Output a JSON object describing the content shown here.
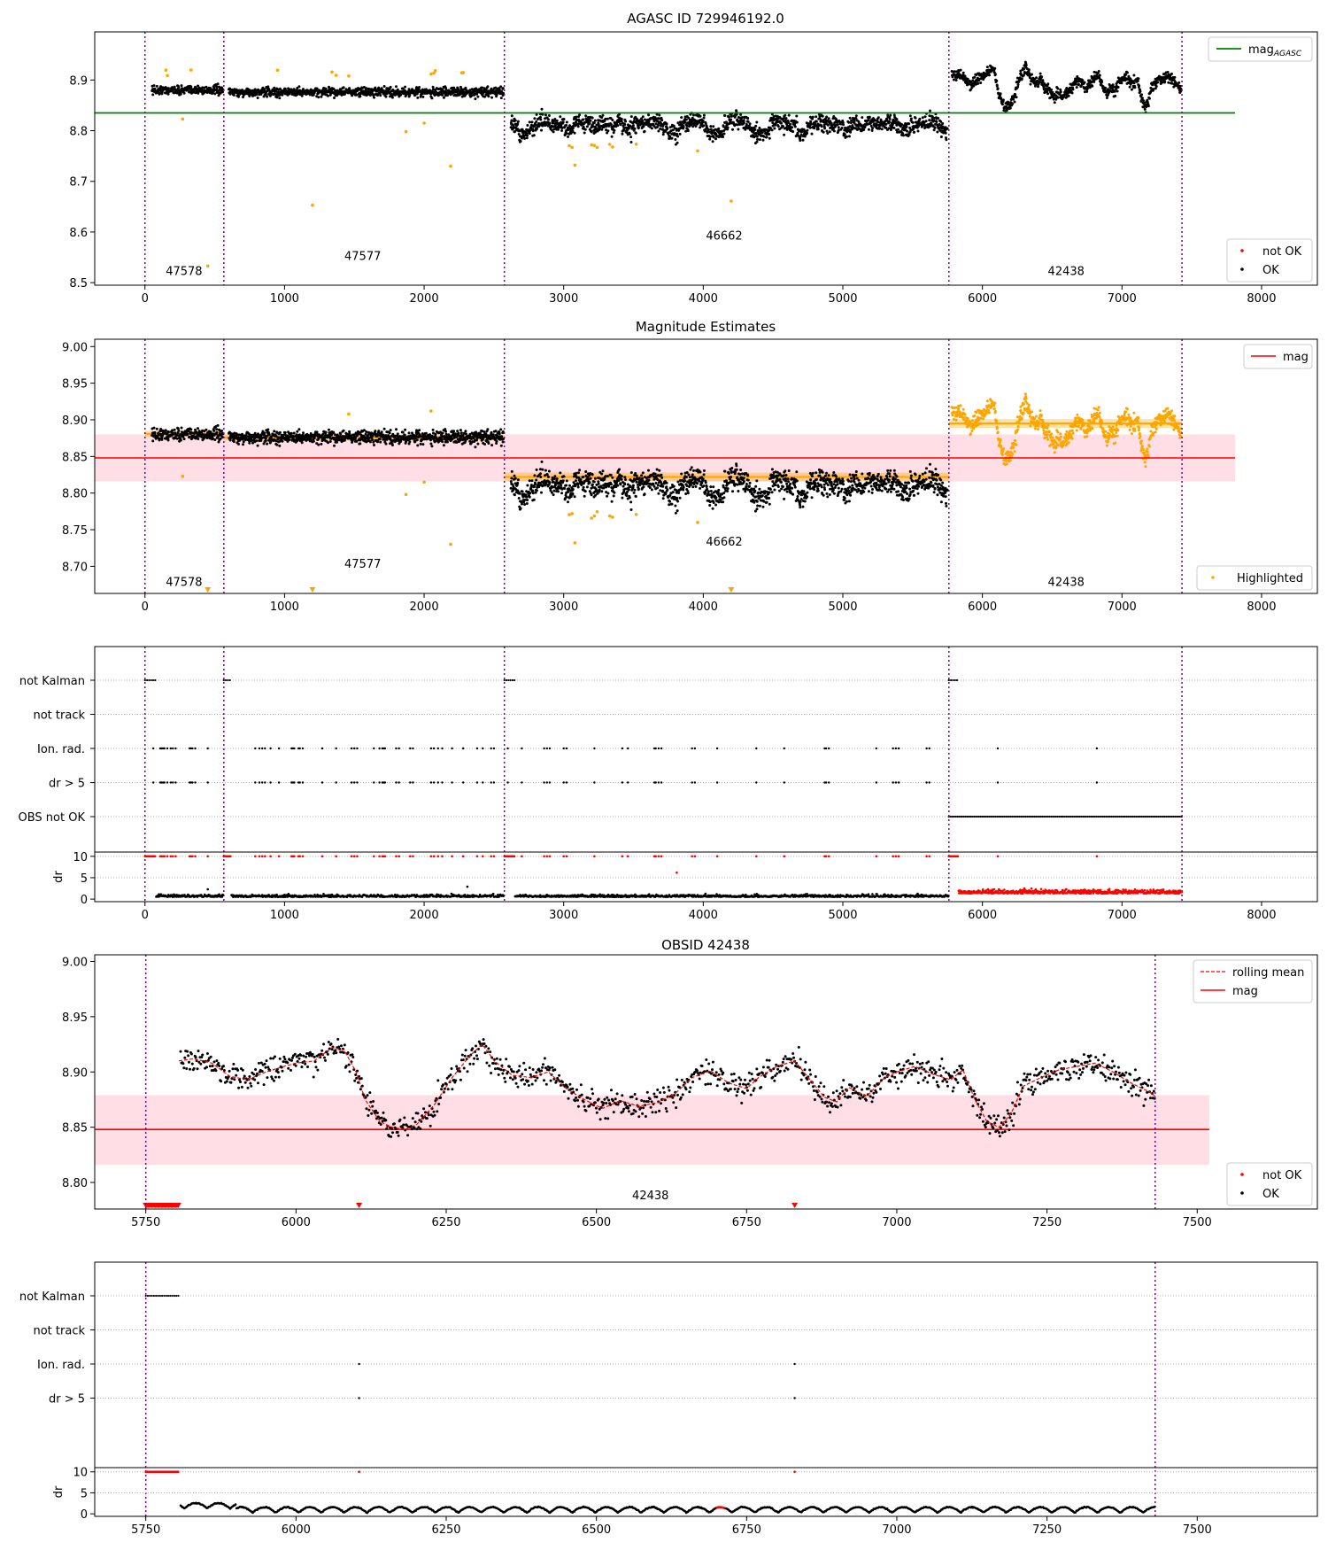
{
  "figure": {
    "top_title": "AGASC ID 729946192.0",
    "mag_title": "Magnitude Estimates",
    "obs_title": "OBSID 42438"
  },
  "colors": {
    "ok": "#000000",
    "not_ok": "#ff0000",
    "highlight": "#ffa500",
    "agasc_line": "#008000",
    "mag_line": "#ff0000",
    "band": "#ffc0cb",
    "obs_boundary": "#800080"
  },
  "chart_data": [
    {
      "type": "scatter",
      "title": "AGASC ID 729946192.0",
      "xlabel": "",
      "ylabel": "",
      "xlim": [
        -360,
        8400
      ],
      "ylim": [
        8.495,
        8.995
      ],
      "xticks": [
        0,
        1000,
        2000,
        3000,
        4000,
        5000,
        6000,
        7000,
        8000
      ],
      "yticks": [
        8.5,
        8.6,
        8.7,
        8.8,
        8.9
      ],
      "obs_boundaries": [
        0,
        565,
        2575,
        5760,
        7430
      ],
      "obsids": [
        {
          "label": "47578",
          "x": 280,
          "y": 8.515
        },
        {
          "label": "47577",
          "x": 1560,
          "y": 8.545
        },
        {
          "label": "46662",
          "x": 4150,
          "y": 8.585
        },
        {
          "label": "42438",
          "x": 6600,
          "y": 8.515
        }
      ],
      "hlines": [
        {
          "name": "mag$_{AGASC}$",
          "y": 8.835,
          "x": [
            -360,
            7810
          ]
        }
      ],
      "segments": [
        {
          "x0": 50,
          "x1": 560,
          "level": 8.88,
          "spread": 0.012
        },
        {
          "x0": 600,
          "x1": 2570,
          "level": 8.876,
          "spread": 0.012
        },
        {
          "x0": 2620,
          "x1": 5750,
          "level": 8.82,
          "spread": 0.022
        },
        {
          "x0": 5780,
          "x1": 7425,
          "level": 8.895,
          "spread": 0.02
        }
      ],
      "outliers": [
        {
          "x": 270,
          "y": 8.823
        },
        {
          "x": 450,
          "y": 8.533
        },
        {
          "x": 1200,
          "y": 8.653
        },
        {
          "x": 1870,
          "y": 8.798
        },
        {
          "x": 2000,
          "y": 8.815
        },
        {
          "x": 2190,
          "y": 8.73
        },
        {
          "x": 3080,
          "y": 8.732
        },
        {
          "x": 3960,
          "y": 8.76
        },
        {
          "x": 4200,
          "y": 8.661
        },
        {
          "x": 1460,
          "y": 8.908
        },
        {
          "x": 2050,
          "y": 8.912
        }
      ],
      "legend": {
        "upper": [
          "mag$_{AGASC}$"
        ],
        "lower": [
          "not OK",
          "OK"
        ],
        "location": "upper right / lower right"
      }
    },
    {
      "type": "scatter",
      "title": "Magnitude Estimates",
      "xlim": [
        -360,
        8400
      ],
      "ylim": [
        8.663,
        9.01
      ],
      "xticks": [
        0,
        1000,
        2000,
        3000,
        4000,
        5000,
        6000,
        7000,
        8000
      ],
      "yticks": [
        8.7,
        8.75,
        8.8,
        8.85,
        8.9,
        8.95,
        9.0
      ],
      "obs_boundaries": [
        0,
        565,
        2575,
        5760,
        7430
      ],
      "obsids": [
        {
          "label": "47578",
          "x": 280,
          "y": 8.673
        },
        {
          "label": "47577",
          "x": 1560,
          "y": 8.698
        },
        {
          "label": "46662",
          "x": 4150,
          "y": 8.728
        },
        {
          "label": "42438",
          "x": 6600,
          "y": 8.673
        }
      ],
      "hlines": [
        {
          "name": "mag",
          "y": 8.848,
          "x": [
            -360,
            7810
          ]
        }
      ],
      "band": {
        "y0": 8.816,
        "y1": 8.88,
        "x": [
          -360,
          7810
        ]
      },
      "obs_means": [
        {
          "x0": 0,
          "x1": 565,
          "y": 8.881,
          "err": 0.004
        },
        {
          "x0": 565,
          "x1": 2575,
          "y": 8.876,
          "err": 0.004
        },
        {
          "x0": 2575,
          "x1": 5760,
          "y": 8.822,
          "err": 0.006
        },
        {
          "x0": 5760,
          "x1": 7430,
          "y": 8.895,
          "err": 0.006
        }
      ],
      "limit_markers": [
        {
          "x": 450
        },
        {
          "x": 1200
        },
        {
          "x": 4200
        }
      ],
      "legend": {
        "upper": [
          "mag"
        ],
        "lower": [
          "Highlighted"
        ]
      }
    },
    {
      "type": "scatter",
      "title": "",
      "xlim": [
        -360,
        8400
      ],
      "xticks": [
        0,
        1000,
        2000,
        3000,
        4000,
        5000,
        6000,
        7000,
        8000
      ],
      "flag_rows": [
        "not Kalman",
        "not track",
        "Ion. rad.",
        "dr > 5",
        "OBS not OK"
      ],
      "flags": {
        "not_kalman": [
          [
            0,
            75
          ],
          [
            565,
            620
          ],
          [
            2575,
            2650
          ],
          [
            5760,
            5830
          ]
        ],
        "ion_rad": [
          60,
          110,
          120,
          130,
          140,
          160,
          185,
          200,
          220,
          320,
          330,
          340,
          360,
          450,
          790,
          820,
          840,
          860,
          900,
          960,
          1050,
          1060,
          1070,
          1100,
          1110,
          1130,
          1270,
          1370,
          1480,
          1500,
          1520,
          1640,
          1680,
          1700,
          1710,
          1720,
          1800,
          1820,
          1900,
          1920,
          2050,
          2070,
          2100,
          2130,
          2200,
          2280,
          2380,
          2420,
          2480,
          2500,
          2600,
          2700,
          2860,
          2880,
          2900,
          3000,
          3020,
          3220,
          3420,
          3460,
          3650,
          3660,
          3680,
          3700,
          3920,
          3940,
          4100,
          4380,
          4580,
          4900,
          4870,
          4880,
          5240,
          5360,
          5380,
          5400,
          5600,
          5620,
          6110,
          6820
        ],
        "obs_not_ok": [
          5760,
          7430
        ]
      },
      "dr_panel": {
        "ylabel": "dr",
        "ylim": [
          -0.6,
          11.0
        ],
        "yticks": [
          0,
          5,
          10
        ],
        "threshold": 5
      }
    },
    {
      "type": "line",
      "title": "OBSID 42438",
      "xlim": [
        5665,
        7700
      ],
      "ylim": [
        8.776,
        9.006
      ],
      "xticks": [
        5750,
        6000,
        6250,
        6500,
        6750,
        7000,
        7250,
        7500
      ],
      "yticks": [
        8.8,
        8.85,
        8.9,
        8.95,
        9.0
      ],
      "obs_boundaries": [
        5750,
        7430
      ],
      "obsids": [
        {
          "label": "42438",
          "x": 6590,
          "y": 8.785
        }
      ],
      "hlines": [
        {
          "name": "mag",
          "y": 8.848,
          "x": [
            5665,
            7520
          ]
        }
      ],
      "band": {
        "y0": 8.816,
        "y1": 8.879,
        "x": [
          5665,
          7520
        ]
      },
      "rolling_mean": {
        "name": "rolling mean",
        "x": [
          5805,
          5830,
          5860,
          5890,
          5920,
          5950,
          5980,
          6000,
          6030,
          6060,
          6080,
          6100,
          6115,
          6140,
          6160,
          6180,
          6200,
          6230,
          6260,
          6290,
          6310,
          6330,
          6360,
          6390,
          6420,
          6450,
          6480,
          6510,
          6540,
          6570,
          6600,
          6630,
          6660,
          6690,
          6720,
          6750,
          6770,
          6800,
          6830,
          6860,
          6880,
          6900,
          6920,
          6950,
          6980,
          7000,
          7030,
          7060,
          7090,
          7110,
          7130,
          7150,
          7170,
          7190,
          7210,
          7240,
          7270,
          7300,
          7330,
          7360,
          7390,
          7420,
          7430
        ],
        "y": [
          8.91,
          8.912,
          8.908,
          8.896,
          8.893,
          8.9,
          8.905,
          8.908,
          8.91,
          8.922,
          8.92,
          8.9,
          8.875,
          8.855,
          8.85,
          8.848,
          8.852,
          8.87,
          8.895,
          8.915,
          8.925,
          8.91,
          8.897,
          8.895,
          8.9,
          8.885,
          8.875,
          8.867,
          8.874,
          8.869,
          8.872,
          8.88,
          8.895,
          8.901,
          8.89,
          8.885,
          8.895,
          8.905,
          8.91,
          8.89,
          8.877,
          8.873,
          8.886,
          8.878,
          8.895,
          8.9,
          8.905,
          8.898,
          8.893,
          8.902,
          8.875,
          8.855,
          8.85,
          8.862,
          8.887,
          8.895,
          8.902,
          8.905,
          8.908,
          8.9,
          8.89,
          8.882,
          8.878
        ]
      },
      "limit_markers": [
        {
          "x": 6105
        },
        {
          "x": 6830
        }
      ],
      "legend": {
        "upper": [
          "rolling mean",
          "mag"
        ],
        "lower": [
          "not OK",
          "OK"
        ]
      }
    },
    {
      "type": "scatter",
      "title": "",
      "xlim": [
        5665,
        7700
      ],
      "xticks": [
        5750,
        6000,
        6250,
        6500,
        6750,
        7000,
        7250,
        7500
      ],
      "flag_rows": [
        "not Kalman",
        "not track",
        "Ion. rad.",
        "dr > 5"
      ],
      "flags": {
        "not_kalman": [
          [
            5750,
            5805
          ]
        ],
        "ion_rad": [
          6105,
          6830
        ],
        "dr_gt5": [
          6105,
          6830
        ]
      },
      "dr_panel": {
        "ylabel": "dr",
        "ylim": [
          -0.6,
          11.0
        ],
        "yticks": [
          0,
          5,
          10
        ],
        "threshold": 5
      }
    }
  ]
}
